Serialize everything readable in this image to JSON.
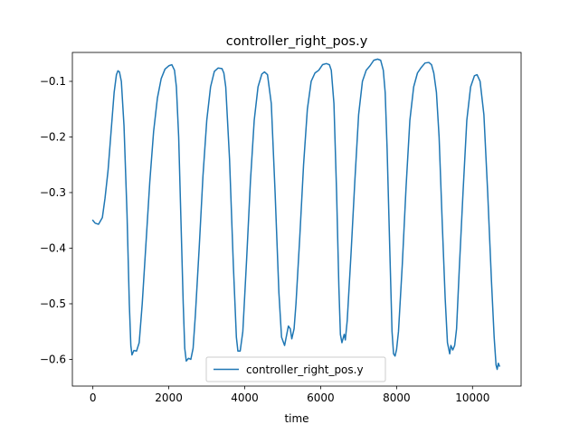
{
  "chart_data": {
    "type": "line",
    "title": "controller_right_pos.y",
    "xlabel": "time",
    "ylabel": "",
    "xlim": [
      -540,
      11280
    ],
    "ylim": [
      -0.648,
      -0.048
    ],
    "x_ticks": [
      0,
      2000,
      4000,
      6000,
      8000,
      10000
    ],
    "y_ticks": [
      -0.6,
      -0.5,
      -0.4,
      -0.3,
      -0.2,
      -0.1
    ],
    "grid": false,
    "legend_position": "lower-center",
    "series": [
      {
        "name": "controller_right_pos.y",
        "color": "#1f77b4",
        "points": [
          [
            0,
            -0.35
          ],
          [
            60,
            -0.355
          ],
          [
            150,
            -0.357
          ],
          [
            250,
            -0.345
          ],
          [
            320,
            -0.31
          ],
          [
            400,
            -0.26
          ],
          [
            480,
            -0.19
          ],
          [
            560,
            -0.12
          ],
          [
            620,
            -0.088
          ],
          [
            660,
            -0.081
          ],
          [
            700,
            -0.083
          ],
          [
            750,
            -0.1
          ],
          [
            820,
            -0.18
          ],
          [
            900,
            -0.34
          ],
          [
            960,
            -0.5
          ],
          [
            1000,
            -0.575
          ],
          [
            1030,
            -0.592
          ],
          [
            1080,
            -0.584
          ],
          [
            1150,
            -0.585
          ],
          [
            1220,
            -0.57
          ],
          [
            1300,
            -0.5
          ],
          [
            1400,
            -0.39
          ],
          [
            1500,
            -0.28
          ],
          [
            1600,
            -0.19
          ],
          [
            1700,
            -0.13
          ],
          [
            1800,
            -0.095
          ],
          [
            1900,
            -0.078
          ],
          [
            2000,
            -0.072
          ],
          [
            2080,
            -0.07
          ],
          [
            2150,
            -0.08
          ],
          [
            2200,
            -0.11
          ],
          [
            2260,
            -0.2
          ],
          [
            2320,
            -0.35
          ],
          [
            2380,
            -0.5
          ],
          [
            2420,
            -0.58
          ],
          [
            2460,
            -0.603
          ],
          [
            2520,
            -0.598
          ],
          [
            2580,
            -0.6
          ],
          [
            2640,
            -0.58
          ],
          [
            2700,
            -0.52
          ],
          [
            2800,
            -0.4
          ],
          [
            2900,
            -0.27
          ],
          [
            3000,
            -0.17
          ],
          [
            3100,
            -0.11
          ],
          [
            3200,
            -0.082
          ],
          [
            3300,
            -0.076
          ],
          [
            3400,
            -0.077
          ],
          [
            3450,
            -0.085
          ],
          [
            3500,
            -0.11
          ],
          [
            3600,
            -0.24
          ],
          [
            3700,
            -0.43
          ],
          [
            3780,
            -0.56
          ],
          [
            3820,
            -0.585
          ],
          [
            3880,
            -0.585
          ],
          [
            3950,
            -0.55
          ],
          [
            4050,
            -0.42
          ],
          [
            4150,
            -0.28
          ],
          [
            4250,
            -0.17
          ],
          [
            4350,
            -0.11
          ],
          [
            4450,
            -0.087
          ],
          [
            4520,
            -0.083
          ],
          [
            4600,
            -0.088
          ],
          [
            4700,
            -0.14
          ],
          [
            4800,
            -0.3
          ],
          [
            4900,
            -0.48
          ],
          [
            4970,
            -0.56
          ],
          [
            5050,
            -0.575
          ],
          [
            5150,
            -0.54
          ],
          [
            5200,
            -0.545
          ],
          [
            5240,
            -0.563
          ],
          [
            5300,
            -0.545
          ],
          [
            5350,
            -0.5
          ],
          [
            5450,
            -0.38
          ],
          [
            5550,
            -0.25
          ],
          [
            5650,
            -0.15
          ],
          [
            5750,
            -0.1
          ],
          [
            5850,
            -0.085
          ],
          [
            5950,
            -0.08
          ],
          [
            6050,
            -0.07
          ],
          [
            6150,
            -0.068
          ],
          [
            6230,
            -0.07
          ],
          [
            6280,
            -0.08
          ],
          [
            6350,
            -0.14
          ],
          [
            6420,
            -0.3
          ],
          [
            6480,
            -0.47
          ],
          [
            6520,
            -0.555
          ],
          [
            6560,
            -0.57
          ],
          [
            6620,
            -0.555
          ],
          [
            6650,
            -0.565
          ],
          [
            6700,
            -0.53
          ],
          [
            6800,
            -0.41
          ],
          [
            6900,
            -0.28
          ],
          [
            7000,
            -0.16
          ],
          [
            7100,
            -0.1
          ],
          [
            7200,
            -0.08
          ],
          [
            7300,
            -0.072
          ],
          [
            7400,
            -0.062
          ],
          [
            7500,
            -0.06
          ],
          [
            7580,
            -0.062
          ],
          [
            7650,
            -0.08
          ],
          [
            7700,
            -0.12
          ],
          [
            7750,
            -0.22
          ],
          [
            7820,
            -0.4
          ],
          [
            7880,
            -0.55
          ],
          [
            7920,
            -0.59
          ],
          [
            7960,
            -0.594
          ],
          [
            8000,
            -0.582
          ],
          [
            8050,
            -0.55
          ],
          [
            8150,
            -0.43
          ],
          [
            8250,
            -0.29
          ],
          [
            8350,
            -0.17
          ],
          [
            8450,
            -0.11
          ],
          [
            8550,
            -0.085
          ],
          [
            8650,
            -0.075
          ],
          [
            8750,
            -0.067
          ],
          [
            8850,
            -0.066
          ],
          [
            8920,
            -0.07
          ],
          [
            8980,
            -0.085
          ],
          [
            9050,
            -0.12
          ],
          [
            9120,
            -0.2
          ],
          [
            9200,
            -0.35
          ],
          [
            9280,
            -0.49
          ],
          [
            9340,
            -0.57
          ],
          [
            9400,
            -0.59
          ],
          [
            9430,
            -0.575
          ],
          [
            9480,
            -0.583
          ],
          [
            9530,
            -0.575
          ],
          [
            9580,
            -0.545
          ],
          [
            9650,
            -0.44
          ],
          [
            9750,
            -0.3
          ],
          [
            9850,
            -0.17
          ],
          [
            9950,
            -0.11
          ],
          [
            10050,
            -0.09
          ],
          [
            10120,
            -0.088
          ],
          [
            10200,
            -0.1
          ],
          [
            10300,
            -0.16
          ],
          [
            10400,
            -0.3
          ],
          [
            10500,
            -0.46
          ],
          [
            10570,
            -0.56
          ],
          [
            10620,
            -0.61
          ],
          [
            10650,
            -0.618
          ],
          [
            10680,
            -0.607
          ],
          [
            10710,
            -0.612
          ]
        ]
      }
    ]
  }
}
